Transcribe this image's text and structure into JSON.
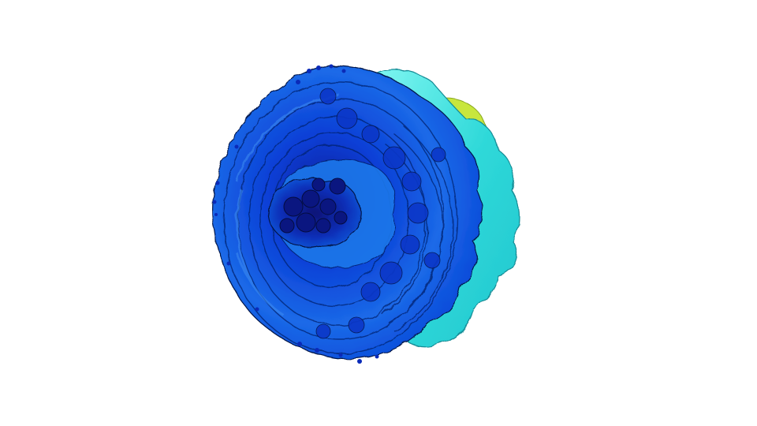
{
  "scene": {
    "subject": "isosurface-render",
    "background_color": "#ffffff",
    "colors": {
      "yellow_green": "#c8e63c",
      "cyan_light": "#5ff2ee",
      "cyan": "#2fd6d6",
      "blue_light": "#1f7fee",
      "blue": "#0a4fe0",
      "blue_mid": "#0a3fd0",
      "blue_deep": "#0a2ab8",
      "navy": "#0a1680",
      "edge_dark": "#05154a"
    }
  }
}
